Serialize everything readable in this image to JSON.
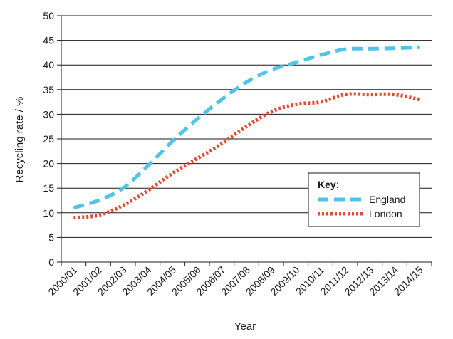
{
  "chart_data": {
    "type": "line",
    "xlabel": "Year",
    "ylabel": "Recycling rate / %",
    "ylim": [
      0,
      50
    ],
    "yticks": [
      0,
      5,
      10,
      15,
      20,
      25,
      30,
      35,
      40,
      45,
      50
    ],
    "grid": true,
    "categories": [
      "2000/01",
      "2001/02",
      "2002/03",
      "2003/04",
      "2004/05",
      "2005/06",
      "2006/07",
      "2007/08",
      "2008/09",
      "2009/10",
      "2010/11",
      "2011/12",
      "2012/13",
      "2013/14",
      "2014/15"
    ],
    "legend": {
      "title": "Key",
      "title_suffix": ":",
      "position": "right"
    },
    "series": [
      {
        "name": "England",
        "color": "#4fc3ea",
        "dash": "dashed",
        "values": [
          11,
          12.5,
          15,
          19.5,
          24.5,
          29,
          33,
          36.5,
          39,
          40.5,
          42,
          43.2,
          43.3,
          43.4,
          43.6
        ]
      },
      {
        "name": "London",
        "color": "#e8482c",
        "dash": "dotted",
        "values": [
          9,
          9.5,
          11.5,
          14.5,
          18,
          21,
          24,
          27.5,
          30.5,
          32,
          32.5,
          34,
          34,
          34,
          33
        ]
      }
    ]
  }
}
